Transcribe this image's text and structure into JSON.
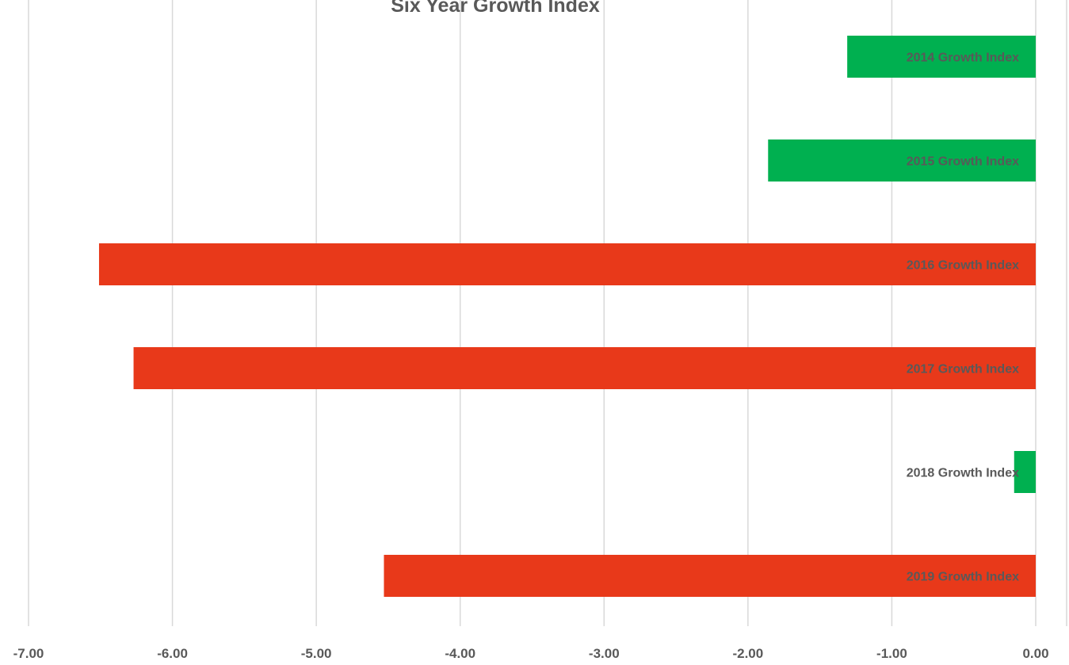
{
  "chart_data": {
    "type": "bar",
    "orientation": "horizontal",
    "title": "Six Year Growth Index",
    "categories": [
      "2014 Growth Index",
      "2015 Growth Index",
      "2016 Growth Index",
      "2017 Growth Index",
      "2018 Growth Index",
      "2019 Growth Index"
    ],
    "values": [
      -1.31,
      -1.86,
      -6.51,
      -6.27,
      -0.15,
      -4.53
    ],
    "bar_colors": [
      "#00b050",
      "#00b050",
      "#e8391a",
      "#e8391a",
      "#00b050",
      "#e8391a"
    ],
    "xlim": [
      -7,
      0
    ],
    "xticks": [
      -7,
      -6,
      -5,
      -4,
      -3,
      -2,
      -1,
      0
    ],
    "xtick_labels": [
      "-7.00",
      "-6.00",
      "-5.00",
      "-4.00",
      "-3.00",
      "-2.00",
      "-1.00",
      "0.00"
    ],
    "xlabel": "",
    "ylabel": "",
    "grid": true,
    "legend": "none",
    "colors": {
      "positive_change": "#00b050",
      "negative_change": "#e8391a",
      "gridline": "#d9d9d9",
      "text": "#595959"
    }
  }
}
